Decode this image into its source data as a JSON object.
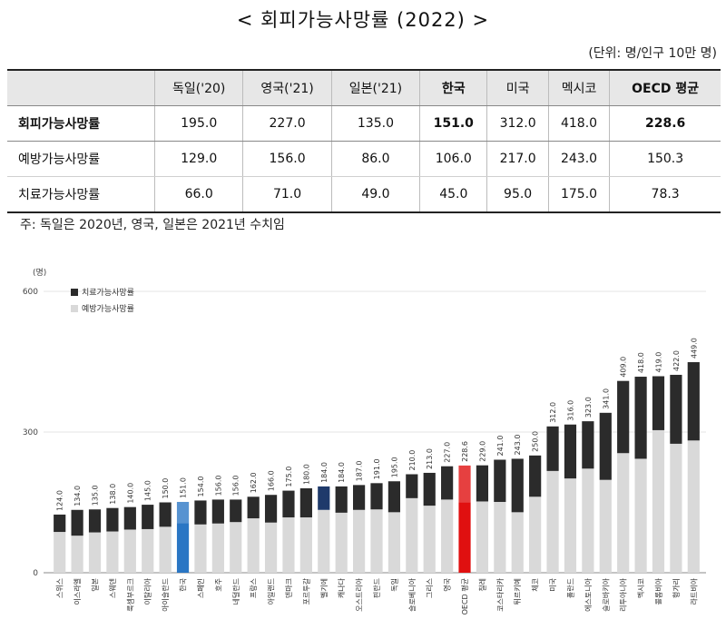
{
  "title": "< 회피가능사망률 (2022) >",
  "unit": "(단위: 명/인구 10만 명)",
  "table": {
    "headers": [
      "",
      "독일('20)",
      "영국('21)",
      "일본('21)",
      "한국",
      "미국",
      "멕시코",
      "OECD 평균"
    ],
    "rows": [
      {
        "label": "회피가능사망률",
        "values": [
          "195.0",
          "227.0",
          "135.0",
          "151.0",
          "312.0",
          "418.0",
          "228.6"
        ]
      },
      {
        "label": "예방가능사망률",
        "values": [
          "129.0",
          "156.0",
          "86.0",
          "106.0",
          "217.0",
          "243.0",
          "150.3"
        ]
      },
      {
        "label": "치료가능사망률",
        "values": [
          "66.0",
          "71.0",
          "49.0",
          "45.0",
          "95.0",
          "175.0",
          "78.3"
        ]
      }
    ]
  },
  "note": "주: 독일은 2020년, 영국, 일본은 2021년 수치임",
  "colors": {
    "treatable": "#2b2b2b",
    "preventable": "#d9d9d9",
    "korea_total": "#1f6fc1",
    "japan_total": "#1f3a6b",
    "oecd_total": "#e01010"
  },
  "chart_data": {
    "type": "bar",
    "stacked": true,
    "ylabel": "(명)",
    "ylim": [
      0,
      600
    ],
    "yticks": [
      0,
      300,
      600
    ],
    "legend": {
      "position": "top-left",
      "entries": [
        "치료가능사망률",
        "예방가능사망률"
      ]
    },
    "categories": [
      "스위스",
      "이스라엘",
      "일본",
      "스웨덴",
      "룩셈부르크",
      "이탈리아",
      "아이슬란드",
      "한국",
      "스페인",
      "호주",
      "네덜란드",
      "프랑스",
      "아일랜드",
      "덴마크",
      "포르투갈",
      "벨기에",
      "캐나다",
      "오스트리아",
      "핀란드",
      "독일",
      "슬로베니아",
      "그리스",
      "영국",
      "OECD 평균",
      "칠레",
      "코스타리카",
      "튀르키예",
      "체코",
      "미국",
      "폴란드",
      "에스토니아",
      "슬로바키아",
      "리투아니아",
      "멕시코",
      "콜롬비아",
      "헝가리",
      "라트비아"
    ],
    "totals": [
      124.0,
      134.0,
      135.0,
      138.0,
      140.0,
      145.0,
      150.0,
      151.0,
      154.0,
      156.0,
      156.0,
      162.0,
      166.0,
      175.0,
      180.0,
      184.0,
      184.0,
      187.0,
      191.0,
      195.0,
      210.0,
      213.0,
      227.0,
      228.6,
      229.0,
      241.0,
      243.0,
      250.0,
      312.0,
      316.0,
      323.0,
      341.0,
      409.0,
      418.0,
      419.0,
      422.0,
      449.0
    ],
    "series": [
      {
        "name": "예방가능사망률",
        "values": [
          87,
          79,
          86,
          88,
          92,
          93,
          98,
          106,
          103,
          105,
          108,
          116,
          107,
          118,
          118,
          134,
          128,
          134,
          135,
          129,
          159,
          143,
          156,
          150.3,
          152,
          151,
          129,
          162,
          217,
          201,
          222,
          198,
          255,
          243,
          304,
          275,
          282
        ]
      },
      {
        "name": "치료가능사망률",
        "values": [
          37,
          55,
          49,
          50,
          48,
          52,
          52,
          45,
          51,
          51,
          48,
          46,
          59,
          57,
          62,
          50,
          56,
          53,
          56,
          66,
          51,
          70,
          71,
          78.3,
          77,
          90,
          114,
          88,
          95,
          115,
          101,
          143,
          154,
          175,
          115,
          147,
          167
        ]
      }
    ]
  }
}
